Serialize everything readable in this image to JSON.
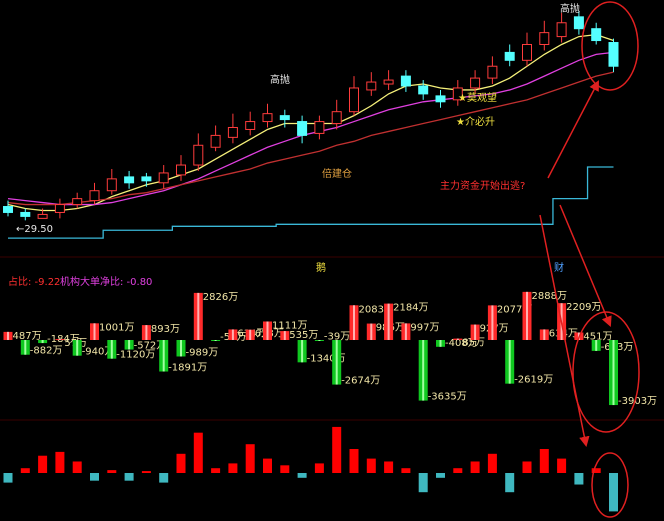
{
  "chart_data": [
    {
      "type": "candlestick",
      "open": [
        30.2,
        29.9,
        29.6,
        29.9,
        30.3,
        30.5,
        31.0,
        31.7,
        31.7,
        31.4,
        31.8,
        32.3,
        33.2,
        33.7,
        34.1,
        34.5,
        34.8,
        34.5,
        33.9,
        34.4,
        35.0,
        36.1,
        36.4,
        36.8,
        36.3,
        35.8,
        35.6,
        36.2,
        36.7,
        38.0,
        37.6,
        38.4,
        38.8,
        39.8,
        39.2,
        38.5
      ],
      "high": [
        30.5,
        30.1,
        30.1,
        30.6,
        30.9,
        31.4,
        32.1,
        32.0,
        31.9,
        32.3,
        32.8,
        33.9,
        34.3,
        34.9,
        35.0,
        35.4,
        35.1,
        34.8,
        34.8,
        35.6,
        36.8,
        37.0,
        37.1,
        37.1,
        36.6,
        36.1,
        36.6,
        37.1,
        37.8,
        38.4,
        39.0,
        39.6,
        40.0,
        40.1,
        39.5,
        38.7
      ],
      "low": [
        29.7,
        29.5,
        29.6,
        29.6,
        30.1,
        30.3,
        30.8,
        31.1,
        31.2,
        31.1,
        31.5,
        32.0,
        33.0,
        33.4,
        33.8,
        34.2,
        34.2,
        33.4,
        33.6,
        34.1,
        34.8,
        35.8,
        36.1,
        36.0,
        35.6,
        35.2,
        35.3,
        35.9,
        36.4,
        37.3,
        37.3,
        38.1,
        38.5,
        38.9,
        38.4,
        37.0
      ],
      "close": [
        29.9,
        29.7,
        29.8,
        30.3,
        30.6,
        31.0,
        31.6,
        31.4,
        31.5,
        31.9,
        32.3,
        33.3,
        33.8,
        34.2,
        34.5,
        34.9,
        34.6,
        33.8,
        34.5,
        35.0,
        36.2,
        36.5,
        36.6,
        36.3,
        35.9,
        35.5,
        36.2,
        36.7,
        37.3,
        37.6,
        38.4,
        39.0,
        39.5,
        39.2,
        38.6,
        37.3
      ],
      "up_color": "#ff3c3c",
      "down_color": "#54ffff",
      "series": [
        {
          "color": "#f5f07a",
          "values": [
            30.3,
            30.1,
            30.0,
            30.0,
            30.1,
            30.3,
            30.7,
            31.0,
            31.3,
            31.5,
            31.8,
            32.1,
            32.6,
            33.1,
            33.6,
            34.1,
            34.4,
            34.4,
            34.4,
            34.4,
            34.8,
            35.3,
            35.9,
            36.3,
            36.4,
            36.2,
            36.1,
            36.1,
            36.3,
            36.7,
            37.3,
            37.9,
            38.4,
            38.8,
            38.9,
            38.6
          ]
        },
        {
          "color": "#e040e0",
          "values": [
            30.6,
            30.5,
            30.4,
            30.3,
            30.3,
            30.3,
            30.4,
            30.6,
            30.8,
            31.0,
            31.3,
            31.6,
            32.0,
            32.4,
            32.8,
            33.2,
            33.5,
            33.8,
            34.0,
            34.2,
            34.5,
            34.8,
            35.1,
            35.3,
            35.5,
            35.6,
            35.7,
            35.8,
            35.9,
            36.1,
            36.4,
            36.8,
            37.2,
            37.6,
            37.9,
            38.0
          ]
        },
        {
          "color": "#c03030",
          "values": [
            30.4,
            30.3,
            30.3,
            30.3,
            30.4,
            30.5,
            30.6,
            30.8,
            30.9,
            31.1,
            31.3,
            31.5,
            31.7,
            31.9,
            32.1,
            32.4,
            32.6,
            32.8,
            33.0,
            33.3,
            33.5,
            33.8,
            34.0,
            34.2,
            34.4,
            34.6,
            34.8,
            35.0,
            35.2,
            35.4,
            35.6,
            35.9,
            36.2,
            36.5,
            36.8,
            37.0
          ]
        },
        {
          "color": "#3ab8d8",
          "step": true,
          "values": [
            28.6,
            28.6,
            28.6,
            28.6,
            28.6,
            28.6,
            29.0,
            29.0,
            29.0,
            29.0,
            29.2,
            29.2,
            29.2,
            29.2,
            29.2,
            29.2,
            29.3,
            29.3,
            29.3,
            29.3,
            29.3,
            29.3,
            29.3,
            29.3,
            29.3,
            29.3,
            29.3,
            29.3,
            29.3,
            29.3,
            29.3,
            29.3,
            30.6,
            30.6,
            32.2,
            32.2
          ]
        }
      ],
      "ylim": [
        28,
        40.5
      ],
      "annotations": [
        "高抛",
        "高抛",
        "★莫观望",
        "★介必升",
        "倍建仓",
        "←29.50",
        "主力资金开始出逃?"
      ]
    },
    {
      "type": "bar",
      "values": [
        487,
        -882,
        -184,
        57,
        -940,
        1001,
        -1120,
        -572,
        893,
        -1891,
        -989,
        2826,
        -55,
        634,
        618,
        1111,
        535,
        -1340,
        -39,
        -2674,
        2083,
        986,
        2184,
        997,
        -3635,
        -408,
        85,
        927,
        2077,
        -2619,
        2888,
        634,
        2209,
        451,
        -653,
        -3903
      ],
      "value_labels": [
        "487万",
        "-882万",
        "-184万",
        "57万",
        "-940万",
        "1001万",
        "-1120万",
        "-572万",
        "893万",
        "-1891万",
        "-989万",
        "2826万",
        "-55万",
        "634万",
        "618万",
        "1111万",
        "535万",
        "-1340万",
        "-39万",
        "-2674万",
        "2083万",
        "986万",
        "2184万",
        "997万",
        "-3635万",
        "-408万",
        "85万",
        "927万",
        "2077万",
        "-2619万",
        "2888万",
        "634万",
        "2209万",
        "451万",
        "-653万",
        "-3903万"
      ],
      "up_color": "#ff2a2a",
      "down_color": "#10c820",
      "ylim": [
        -4500,
        4200
      ],
      "annotations": [
        "占比: -9.22",
        "机构大单净比: -0.80",
        "鹅",
        "财"
      ]
    },
    {
      "type": "bar",
      "values": [
        -10,
        5,
        18,
        22,
        12,
        -8,
        3,
        -8,
        2,
        -10,
        20,
        42,
        5,
        10,
        30,
        15,
        8,
        -5,
        10,
        48,
        25,
        15,
        12,
        5,
        -20,
        -5,
        5,
        12,
        20,
        -20,
        12,
        25,
        15,
        -12,
        5,
        -40
      ],
      "up_color": "#ff0000",
      "down_color": "#3fb8c0",
      "ylim": [
        -50,
        50
      ]
    }
  ]
}
